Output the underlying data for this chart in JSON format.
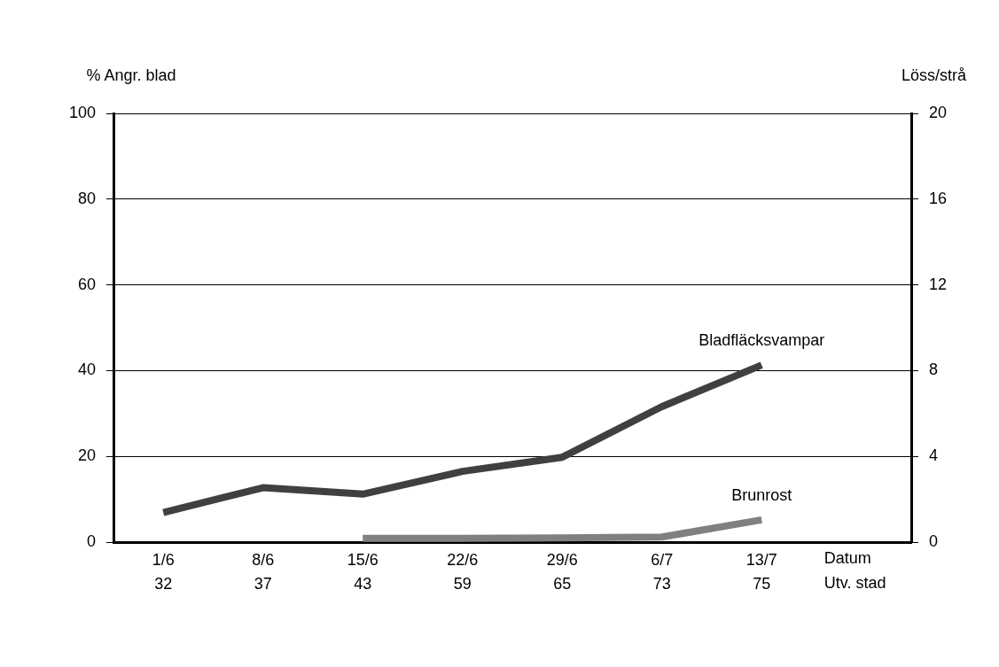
{
  "chart_data": {
    "type": "line",
    "ylabel": "% Angr. blad",
    "y2label": "Löss/strå",
    "xlabel": "Datum\nUtv. stad",
    "categories": [
      "1/6\n32",
      "8/6\n37",
      "15/6\n43",
      "22/6\n59",
      "29/6\n65",
      "6/7\n73",
      "13/7\n75",
      null
    ],
    "series": [
      {
        "name": "Bladfläcksvampar",
        "color": "#404040",
        "values": [
          6.9,
          12.7,
          11.2,
          16.5,
          19.8,
          31.6,
          41.3,
          null
        ]
      },
      {
        "name": "Brunrost",
        "color": "#808080",
        "values": [
          null,
          null,
          0.9,
          0.9,
          1,
          1.2,
          5.2,
          null
        ]
      }
    ],
    "ylim": [
      0,
      100
    ],
    "yticks": [
      0,
      20,
      40,
      60,
      80,
      100
    ],
    "y2lim": [
      0,
      20
    ],
    "y2ticks": [
      0,
      4,
      8,
      12,
      16,
      20
    ],
    "grid": "y",
    "legend": false,
    "marker": "none",
    "line_style": "solid"
  }
}
